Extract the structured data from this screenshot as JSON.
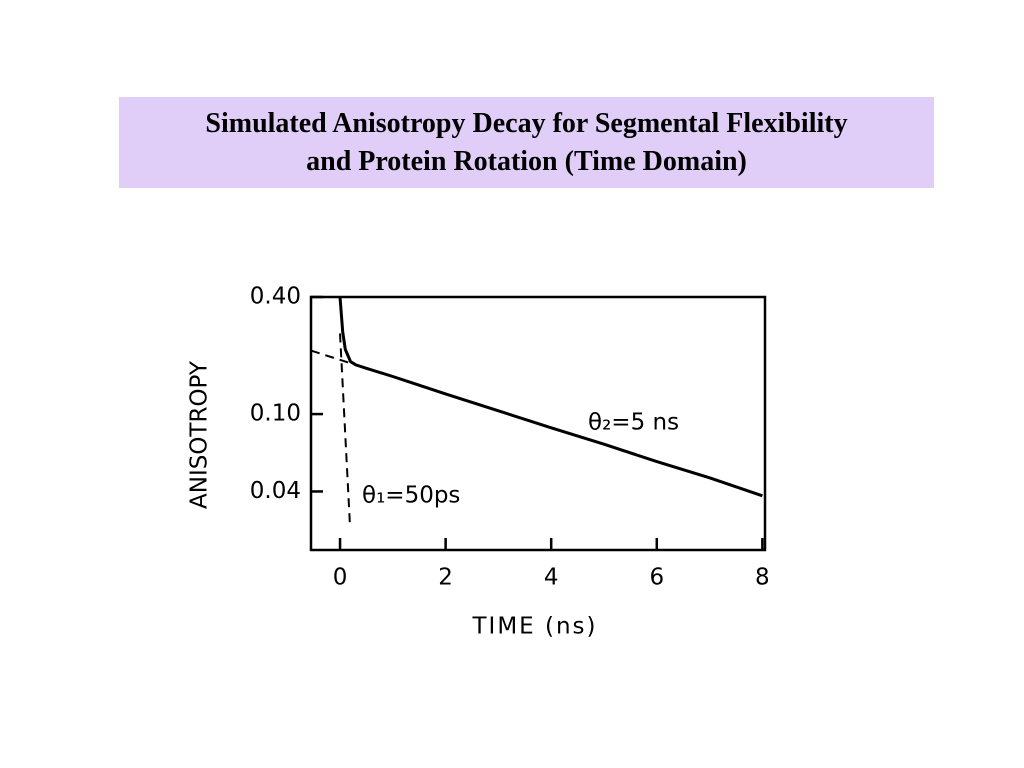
{
  "chart_data": {
    "type": "line",
    "title": "Simulated Anisotropy Decay for Segmental Flexibility\nand Protein Rotation (Time Domain)",
    "x_label": "TIME (ns)",
    "y_label": "ANISOTROPY",
    "y_scale": "log",
    "xlim": [
      -0.55,
      8.05
    ],
    "ylim": [
      0.02,
      0.4
    ],
    "xticks": [
      0,
      2,
      4,
      6,
      8
    ],
    "yticks": [
      {
        "value": 0.4,
        "label": "0.40"
      },
      {
        "value": 0.1,
        "label": "0.10"
      },
      0.04
    ],
    "series": [
      {
        "color": "#000000",
        "style": "solid",
        "x": [
          0,
          0.05,
          0.1,
          0.2,
          0.3,
          0.5,
          1,
          2,
          3,
          4,
          5,
          6,
          7,
          8
        ],
        "values": [
          0.4,
          0.265,
          0.215,
          0.186,
          0.179,
          0.172,
          0.156,
          0.127,
          0.104,
          0.085,
          0.07,
          0.057,
          0.047,
          0.038
        ]
      },
      {
        "color": "#000000",
        "style": "dashed",
        "x": [
          -0.55,
          0.8
        ],
        "values": [
          0.212,
          0.162
        ]
      },
      {
        "color": "#000000",
        "style": "dashed",
        "x": [
          0,
          0.19
        ],
        "values": [
          0.26,
          0.026
        ]
      }
    ],
    "annotations": [
      "θ₁=50ps",
      "θ₂=5 ns"
    ]
  }
}
